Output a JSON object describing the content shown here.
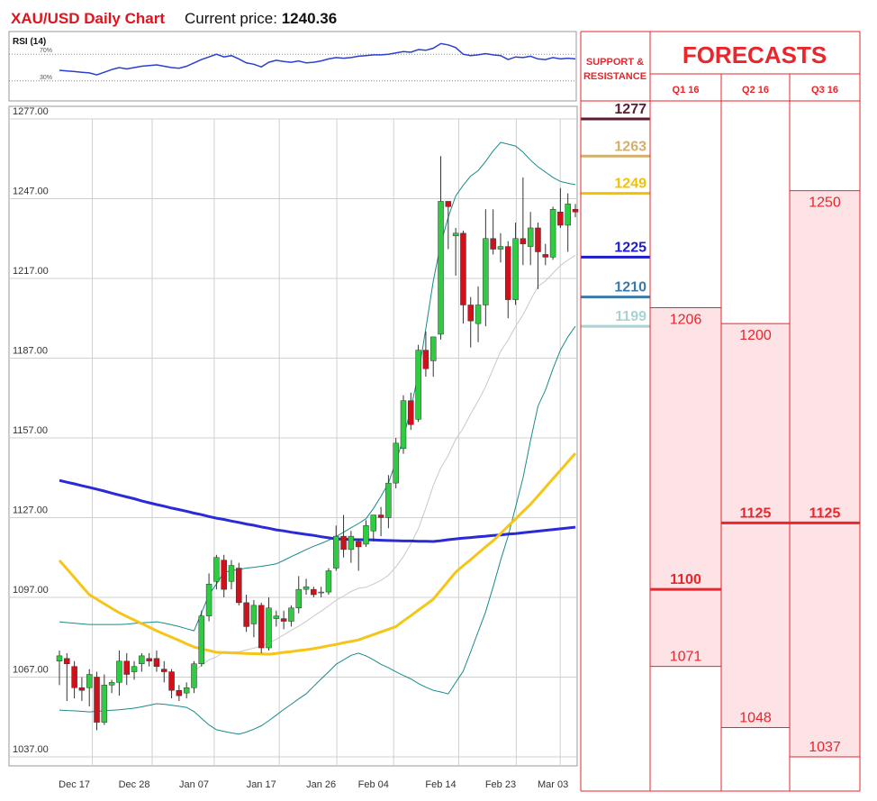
{
  "header": {
    "title": "XAU/USD Daily Chart",
    "price_label": "Current price:",
    "price": 1240.36
  },
  "chart_data": [
    {
      "type": "line",
      "title": "RSI (14)",
      "color": "#2b3fd0",
      "ylim": [
        0,
        100
      ],
      "yticks": [
        {
          "value": 70,
          "label": "70%"
        },
        {
          "value": 30,
          "label": "30%"
        }
      ],
      "values": [
        46,
        45,
        44,
        43,
        42,
        39,
        43,
        47,
        50,
        48,
        50,
        52,
        53,
        54,
        52,
        50,
        49,
        52,
        57,
        62,
        66,
        70,
        66,
        68,
        63,
        57,
        55,
        51,
        58,
        61,
        59,
        58,
        60,
        57,
        58,
        60,
        63,
        65,
        64,
        65,
        67,
        68,
        69,
        69,
        70,
        72,
        74,
        73,
        77,
        76,
        79,
        86,
        84,
        80,
        70,
        68,
        69,
        71,
        69,
        68,
        62,
        66,
        65,
        67,
        63,
        62,
        65,
        63,
        64,
        63
      ]
    },
    {
      "type": "candlestick",
      "up_color": "#2ecc40",
      "down_color": "#d0101a",
      "grid": true,
      "ylim": [
        1033.6,
        1277
      ],
      "yticks": [
        {
          "value": 1277,
          "label": "1277.00"
        },
        {
          "value": 1247,
          "label": "1247.00"
        },
        {
          "value": 1217,
          "label": "1217.00"
        },
        {
          "value": 1187,
          "label": "1187.00"
        },
        {
          "value": 1157,
          "label": "1157.00"
        },
        {
          "value": 1127,
          "label": "1127.00"
        },
        {
          "value": 1097,
          "label": "1097.00"
        },
        {
          "value": 1067,
          "label": "1067.00"
        },
        {
          "value": 1037,
          "label": "1037.00"
        }
      ],
      "categories": [
        null,
        null,
        "Dec 17",
        null,
        null,
        null,
        null,
        null,
        null,
        null,
        "Dec 28",
        null,
        null,
        null,
        null,
        null,
        null,
        null,
        "Jan 07",
        null,
        null,
        null,
        null,
        null,
        null,
        null,
        null,
        "Jan 17",
        null,
        null,
        null,
        null,
        null,
        null,
        null,
        "Jan 26",
        null,
        null,
        null,
        null,
        null,
        null,
        "Feb 04",
        null,
        null,
        null,
        null,
        null,
        null,
        null,
        null,
        "Feb 14",
        null,
        null,
        null,
        null,
        null,
        null,
        null,
        "Feb 23",
        null,
        null,
        null,
        null,
        null,
        null,
        "Mar 03",
        null,
        null,
        null
      ],
      "open": [
        1073,
        1074,
        1071,
        1063,
        1063,
        1067,
        1050,
        1064,
        1065,
        1073,
        1069,
        1072,
        1074,
        1074,
        1070,
        1069,
        1062,
        1061,
        1063,
        1072,
        1090,
        1103,
        1111,
        1103,
        1108,
        1095,
        1087,
        1094,
        1078,
        1089,
        1089,
        1088,
        1093,
        1100,
        1100,
        1099,
        1099,
        1108,
        1120,
        1115,
        1118,
        1117,
        1122,
        1128,
        1127,
        1140,
        1153,
        1171,
        1164,
        1190,
        1186,
        1196,
        1246,
        1233,
        1234,
        1207,
        1200,
        1207,
        1232,
        1228,
        1229,
        1209,
        1232,
        1229,
        1236,
        1226,
        1225,
        1242,
        1237,
        1243
      ],
      "high": [
        1077,
        1076,
        1073,
        1067,
        1070,
        1069,
        1068,
        1066,
        1077,
        1076,
        1073,
        1076,
        1076,
        1077,
        1073,
        1070,
        1064,
        1065,
        1073,
        1092,
        1106,
        1113,
        1113,
        1111,
        1110,
        1098,
        1096,
        1095,
        1097,
        1092,
        1092,
        1094,
        1105,
        1104,
        1101,
        1101,
        1108,
        1124,
        1128,
        1122,
        1119,
        1126,
        1128,
        1131,
        1143,
        1157,
        1173,
        1174,
        1192,
        1197,
        1195,
        1263,
        1246,
        1236,
        1235,
        1210,
        1214,
        1243,
        1243,
        1234,
        1231,
        1238,
        1255,
        1242,
        1238,
        1230,
        1244,
        1251,
        1249,
        1245
      ],
      "low": [
        1064,
        1058,
        1059,
        1058,
        1056,
        1047,
        1049,
        1061,
        1060,
        1064,
        1066,
        1069,
        1071,
        1069,
        1065,
        1059,
        1058,
        1059,
        1061,
        1071,
        1088,
        1100,
        1097,
        1100,
        1094,
        1084,
        1082,
        1076,
        1077,
        1086,
        1085,
        1086,
        1091,
        1098,
        1097,
        1097,
        1098,
        1107,
        1112,
        1110,
        1107,
        1116,
        1118,
        1120,
        1123,
        1138,
        1151,
        1160,
        1163,
        1180,
        1180,
        1194,
        1228,
        1218,
        1200,
        1191,
        1193,
        1199,
        1226,
        1223,
        1202,
        1207,
        1222,
        1222,
        1213,
        1222,
        1224,
        1236,
        1227,
        1240
      ],
      "close": [
        1075,
        1072,
        1063,
        1062,
        1068,
        1050,
        1064,
        1065,
        1073,
        1068,
        1071,
        1075,
        1073,
        1071,
        1069,
        1062,
        1060,
        1063,
        1072,
        1090,
        1102,
        1112,
        1100,
        1109,
        1095,
        1086,
        1094,
        1078,
        1093,
        1090,
        1088,
        1093,
        1100,
        1101,
        1098,
        1099,
        1107,
        1120,
        1115,
        1120,
        1116,
        1124,
        1128,
        1127,
        1140,
        1155,
        1171,
        1162,
        1190,
        1183,
        1195,
        1246,
        1244,
        1234,
        1207,
        1201,
        1207,
        1232,
        1228,
        1229,
        1209,
        1232,
        1230,
        1236,
        1227,
        1225,
        1243,
        1237,
        1245,
        1242
      ],
      "lines": [
        {
          "color": "#c8c8c8",
          "weight": "light",
          "values": [
            null,
            null,
            null,
            null,
            null,
            null,
            null,
            null,
            null,
            null,
            null,
            null,
            null,
            null,
            null,
            null,
            null,
            null,
            1069.2,
            1071.4,
            1073.5,
            1074.6,
            1076.6,
            1076.5,
            1076.5,
            1077.2,
            1077.9,
            1078.7,
            1079.9,
            1081.2,
            1082.9,
            1084.6,
            1086.2,
            1087.9,
            1089.9,
            1091.8,
            1093.8,
            1095.9,
            1097.5,
            1099.2,
            1100.4,
            1100.8,
            1102.0,
            1103.4,
            1105.3,
            1108.5,
            1112.3,
            1117.2,
            1122.8,
            1130.6,
            1139.0,
            1145.7,
            1150.4,
            1156.5,
            1160.6,
            1166.0,
            1170.8,
            1176.3,
            1183.0,
            1189.6,
            1193.8,
            1198.9,
            1203.3,
            1208.8,
            1214.0,
            1216.0,
            1219.0,
            1221.8,
            1223.9,
            1225.7
          ]
        },
        {
          "color": "#1a8a8a",
          "weight": "light",
          "values": [
            1087.8,
            1087.5,
            1087.3,
            1087.0,
            1086.8,
            1086.8,
            1086.8,
            1086.8,
            1086.8,
            1086.9,
            1087.2,
            1087.4,
            1087.6,
            1087.8,
            1087.3,
            1086.7,
            1086.0,
            1085.2,
            1084.4,
            1091.2,
            1098.0,
            1102.0,
            1106.5,
            1107.0,
            1107.5,
            1108.0,
            1108.3,
            1108.7,
            1109.1,
            1109.6,
            1110.9,
            1112.3,
            1113.6,
            1115.0,
            1116.2,
            1117.3,
            1118.5,
            1119.9,
            1121.5,
            1123.2,
            1124.8,
            1126.6,
            1130.5,
            1135.0,
            1140.0,
            1148.0,
            1157.0,
            1168.0,
            1181.0,
            1198.0,
            1216.0,
            1230.0,
            1240.0,
            1248.0,
            1252.0,
            1255.5,
            1257.5,
            1261.0,
            1265.0,
            1268.2,
            1267.5,
            1266.8,
            1264.5,
            1261.5,
            1259.0,
            1257.0,
            1255.0,
            1253.5,
            1252.8,
            1252.3
          ]
        },
        {
          "color": "#1a8a8a",
          "weight": "light",
          "values": [
            1054.6,
            1054.4,
            1054.3,
            1054.1,
            1053.9,
            1054.1,
            1054.3,
            1054.5,
            1054.7,
            1055.0,
            1055.3,
            1055.8,
            1056.4,
            1057.0,
            1056.8,
            1056.4,
            1056.0,
            1055.6,
            1054.0,
            1051.5,
            1049.0,
            1047.2,
            1046.6,
            1046.0,
            1045.5,
            1046.3,
            1047.4,
            1048.7,
            1050.6,
            1052.7,
            1054.8,
            1056.8,
            1058.8,
            1060.7,
            1063.5,
            1066.3,
            1069.0,
            1071.8,
            1073.5,
            1075.2,
            1076.0,
            1075.0,
            1073.5,
            1071.8,
            1070.5,
            1069.0,
            1067.6,
            1066.3,
            1064.6,
            1063.2,
            1062.0,
            1061.4,
            1060.7,
            1065.0,
            1069.2,
            1076.5,
            1084.0,
            1091.5,
            1101.0,
            1111.0,
            1120.0,
            1131.0,
            1142.0,
            1156.0,
            1169.0,
            1175.0,
            1183.0,
            1190.0,
            1195.0,
            1199.0
          ]
        },
        {
          "color": "#2a2ad8",
          "weight": "heavy",
          "values": [
            1141.0,
            1140.3,
            1139.7,
            1139.0,
            1138.4,
            1137.7,
            1137.0,
            1136.2,
            1135.5,
            1134.8,
            1134.1,
            1133.3,
            1132.6,
            1131.9,
            1131.3,
            1130.6,
            1130.0,
            1129.4,
            1128.7,
            1128.1,
            1127.4,
            1126.8,
            1126.3,
            1125.7,
            1125.2,
            1124.6,
            1124.1,
            1123.5,
            1123.0,
            1122.4,
            1122.0,
            1121.5,
            1121.1,
            1120.7,
            1120.3,
            1119.8,
            1119.4,
            1119.0,
            1118.9,
            1118.8,
            1118.7,
            1118.7,
            1118.6,
            1118.5,
            1118.4,
            1118.3,
            1118.2,
            1118.2,
            1118.1,
            1118.1,
            1118.0,
            1118.3,
            1118.7,
            1119.0,
            1119.3,
            1119.5,
            1119.8,
            1120.0,
            1120.3,
            1120.5,
            1120.8,
            1121.0,
            1121.3,
            1121.6,
            1121.9,
            1122.2,
            1122.5,
            1122.8,
            1123.1,
            1123.4
          ]
        },
        {
          "color": "#f5c518",
          "weight": "heavy",
          "values": [
            1110.9,
            1107.7,
            1104.5,
            1101.2,
            1098.0,
            1096.3,
            1094.6,
            1092.9,
            1091.2,
            1089.8,
            1088.5,
            1087.1,
            1085.8,
            1084.4,
            1083.2,
            1082.0,
            1080.8,
            1079.5,
            1078.3,
            1077.6,
            1077.0,
            1076.3,
            1076.2,
            1076.1,
            1076.0,
            1075.9,
            1075.8,
            1075.7,
            1075.6,
            1075.9,
            1076.3,
            1076.6,
            1077.0,
            1077.3,
            1077.7,
            1078.2,
            1078.8,
            1079.3,
            1079.9,
            1080.4,
            1081.0,
            1082.0,
            1083.0,
            1084.0,
            1085.0,
            1086.0,
            1088.1,
            1090.1,
            1092.2,
            1094.2,
            1096.3,
            1099.7,
            1103.1,
            1106.5,
            1108.9,
            1111.2,
            1113.6,
            1116.0,
            1118.3,
            1121.0,
            1123.8,
            1126.5,
            1129.3,
            1132.0,
            1135.2,
            1138.4,
            1141.6,
            1144.8,
            1148.0,
            1151.2
          ]
        }
      ]
    }
  ],
  "support_resistance": {
    "title": [
      "SUPPORT &",
      "RESISTANCE"
    ],
    "levels": [
      {
        "value": 1277,
        "color": "#5c1a33"
      },
      {
        "value": 1263,
        "color": "#d2b06c"
      },
      {
        "value": 1249,
        "color": "#f2c200"
      },
      {
        "value": 1225,
        "color": "#1c1ccc"
      },
      {
        "value": 1210,
        "color": "#3b7aa8"
      },
      {
        "value": 1199,
        "color": "#a9d3d3"
      }
    ]
  },
  "forecasts": {
    "title": "FORECASTS",
    "color": "#e8262c",
    "fill": "#fde3e5",
    "columns": [
      {
        "quarter": "Q1 16",
        "high": 1206,
        "mid": 1100,
        "low": 1071
      },
      {
        "quarter": "Q2 16",
        "high": 1200,
        "mid": 1125,
        "low": 1048
      },
      {
        "quarter": "Q3 16",
        "high": 1250,
        "mid": 1125,
        "low": 1037
      }
    ]
  }
}
